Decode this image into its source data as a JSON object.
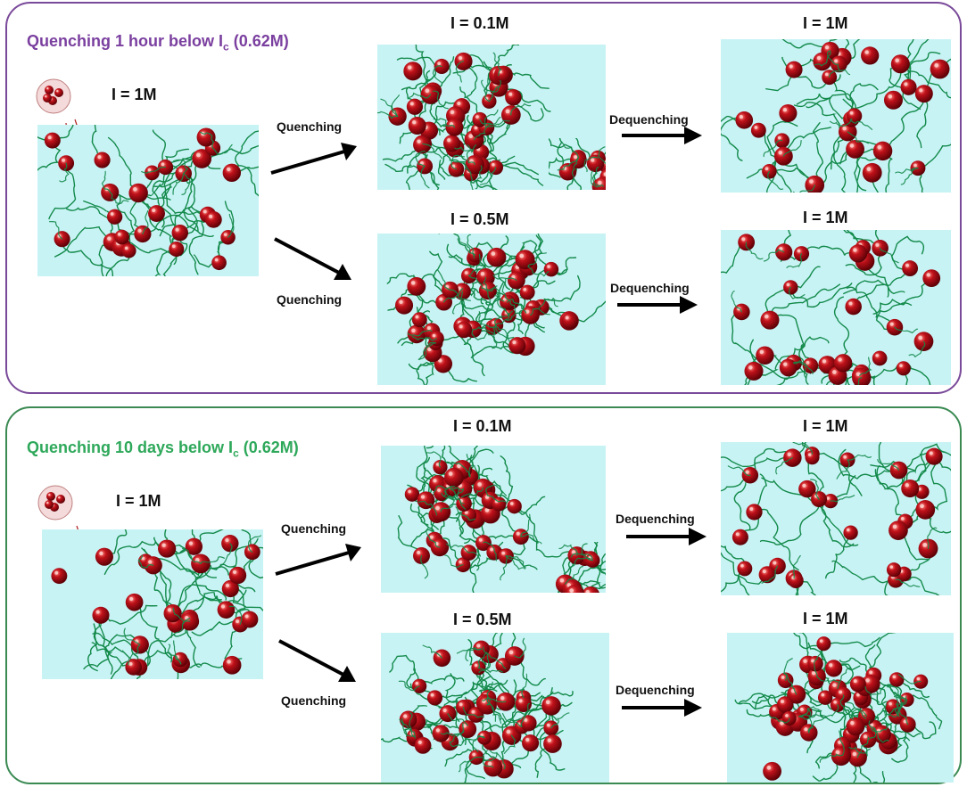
{
  "colors": {
    "solvent": "#c8f3f5",
    "polymer": "#138a4a",
    "particle": "#c0111a",
    "panel1_border": "#7a4a9a",
    "panel2_border": "#3a8a52"
  },
  "panel1": {
    "title_main": "Quenching 1 hour below I",
    "title_sub": "c",
    "title_tail": " (0.62M)",
    "initial_label": "I = 1M",
    "top_label": "I = 0.1M",
    "bottom_label": "I = 0.5M",
    "result_top_label": "I = 1M",
    "result_bottom_label": "I = 1M",
    "step_quench_top": "Quenching",
    "step_quench_bottom": "Quenching",
    "step_dequench_top": "Dequenching",
    "step_dequench_bottom": "Dequenching"
  },
  "panel2": {
    "title_main": "Quenching 10 days below I",
    "title_sub": "c",
    "title_tail": " (0.62M)",
    "initial_label": "I = 1M",
    "top_label": "I = 0.1M",
    "bottom_label": "I = 0.5M",
    "result_top_label": "I = 1M",
    "result_bottom_label": "I = 1M",
    "step_quench_top": "Quenching",
    "step_quench_bottom": "Quenching",
    "step_dequench_top": "Dequenching",
    "step_dequench_bottom": "Dequenching"
  }
}
